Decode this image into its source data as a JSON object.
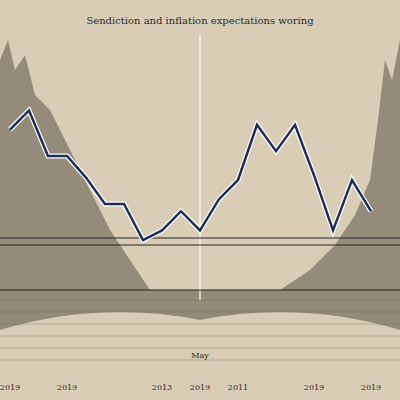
{
  "chart_data": {
    "type": "line",
    "title": "Sendiction and inflation expectations woring",
    "categories": [
      "2019",
      null,
      null,
      "2019",
      null,
      null,
      null,
      null,
      "2013",
      null,
      "2019",
      null,
      "2011",
      null,
      null,
      null,
      "2019",
      null,
      null,
      "2019",
      null
    ],
    "values": [
      71,
      79,
      60,
      60,
      51,
      40,
      40,
      25,
      29,
      37,
      29,
      42,
      50,
      73,
      62,
      73,
      52,
      29,
      50,
      37,
      null
    ],
    "color": "#1f2d5a",
    "ylim": [
      0,
      100
    ],
    "annotation": "May",
    "tick_labels": "x",
    "grid": false
  }
}
